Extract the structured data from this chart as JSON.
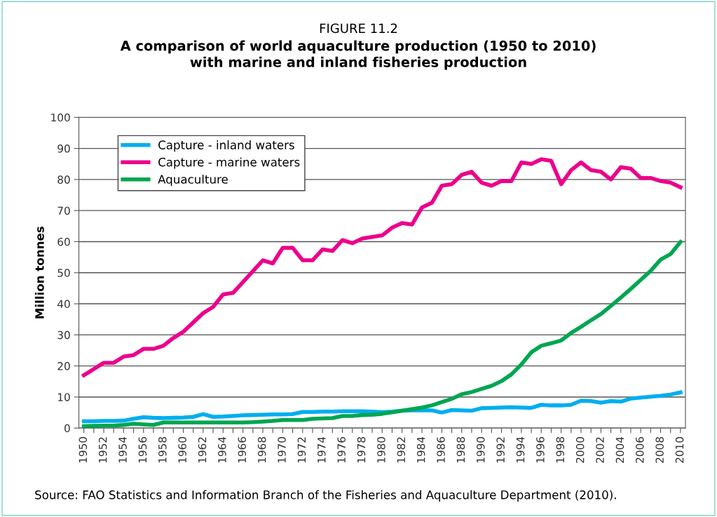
{
  "chart_data": {
    "type": "line",
    "title": "FIGURE 11.2",
    "subtitle": "A comparison of world aquaculture production (1950 to 2010)\nwith marine and inland fisheries production",
    "ylabel": "Million tonnes",
    "x": [
      1950,
      1951,
      1952,
      1953,
      1954,
      1955,
      1956,
      1957,
      1958,
      1959,
      1960,
      1961,
      1962,
      1963,
      1964,
      1965,
      1966,
      1967,
      1968,
      1969,
      1970,
      1971,
      1972,
      1973,
      1974,
      1975,
      1976,
      1977,
      1978,
      1979,
      1980,
      1981,
      1982,
      1983,
      1984,
      1985,
      1986,
      1987,
      1988,
      1989,
      1990,
      1991,
      1992,
      1993,
      1994,
      1995,
      1996,
      1997,
      1998,
      1999,
      2000,
      2001,
      2002,
      2003,
      2004,
      2005,
      2006,
      2007,
      2008,
      2009,
      2010
    ],
    "series": [
      {
        "name": "Capture - inland waters",
        "color": "#00aeef",
        "values": [
          2.2,
          2.2,
          2.3,
          2.3,
          2.4,
          3.0,
          3.5,
          3.3,
          3.2,
          3.3,
          3.4,
          3.6,
          4.5,
          3.6,
          3.7,
          3.9,
          4.1,
          4.2,
          4.3,
          4.4,
          4.4,
          4.5,
          5.2,
          5.2,
          5.3,
          5.3,
          5.4,
          5.4,
          5.4,
          5.3,
          5.1,
          5.3,
          5.6,
          5.7,
          5.7,
          5.7,
          5.0,
          5.8,
          5.7,
          5.6,
          6.4,
          6.5,
          6.6,
          6.7,
          6.6,
          6.5,
          7.5,
          7.3,
          7.3,
          7.5,
          8.8,
          8.7,
          8.2,
          8.7,
          8.5,
          9.5,
          9.8,
          10.1,
          10.4,
          10.8,
          11.5
        ]
      },
      {
        "name": "Capture - marine waters",
        "color": "#ec008c",
        "values": [
          17,
          19,
          21,
          21,
          23,
          23.5,
          25.5,
          25.5,
          26.5,
          29,
          31,
          34,
          37,
          39,
          43,
          43.5,
          47,
          50.5,
          54,
          53,
          58,
          58,
          54,
          54,
          57.5,
          57,
          60.5,
          59.5,
          61,
          61.5,
          62,
          64.5,
          66,
          65.5,
          71,
          72.5,
          78,
          78.5,
          81.5,
          82.5,
          79,
          78,
          79.5,
          79.5,
          85.5,
          85,
          86.5,
          86,
          78.5,
          83,
          85.5,
          83,
          82.5,
          80,
          84,
          83.5,
          80.5,
          80.5,
          79.5,
          79,
          77.5
        ]
      },
      {
        "name": "Aquaculture",
        "color": "#00a651",
        "values": [
          0.6,
          0.7,
          0.8,
          0.8,
          1.0,
          1.4,
          1.2,
          1.0,
          1.8,
          1.8,
          1.8,
          1.8,
          1.8,
          1.8,
          1.8,
          1.8,
          1.8,
          1.9,
          2.1,
          2.3,
          2.6,
          2.6,
          2.6,
          3.0,
          3.1,
          3.2,
          3.9,
          3.9,
          4.2,
          4.3,
          4.6,
          5.1,
          5.6,
          6.1,
          6.6,
          7.3,
          8.4,
          9.4,
          10.9,
          11.6,
          12.6,
          13.6,
          15.1,
          17.3,
          20.5,
          24.4,
          26.5,
          27.3,
          28.2,
          30.6,
          32.6,
          34.7,
          36.7,
          39.3,
          42.0,
          44.8,
          47.7,
          50.6,
          54.2,
          56.0,
          59.9
        ]
      }
    ],
    "xlim": [
      1949.5,
      2010.5
    ],
    "xticks": [
      1950,
      {
        "value": 1951,
        "label": null
      },
      1952,
      {
        "value": 1953,
        "label": null
      },
      1954,
      {
        "value": 1955,
        "label": null
      },
      1956,
      {
        "value": 1957,
        "label": null
      },
      1958,
      {
        "value": 1959,
        "label": null
      },
      1960,
      {
        "value": 1961,
        "label": null
      },
      1962,
      {
        "value": 1963,
        "label": null
      },
      1964,
      {
        "value": 1965,
        "label": null
      },
      1966,
      {
        "value": 1967,
        "label": null
      },
      1968,
      {
        "value": 1969,
        "label": null
      },
      1970,
      {
        "value": 1971,
        "label": null
      },
      1972,
      {
        "value": 1973,
        "label": null
      },
      1974,
      {
        "value": 1975,
        "label": null
      },
      1976,
      {
        "value": 1977,
        "label": null
      },
      1978,
      {
        "value": 1979,
        "label": null
      },
      1980,
      {
        "value": 1981,
        "label": null
      },
      1982,
      {
        "value": 1983,
        "label": null
      },
      1984,
      {
        "value": 1985,
        "label": null
      },
      1986,
      {
        "value": 1987,
        "label": null
      },
      1988,
      {
        "value": 1989,
        "label": null
      },
      1990,
      {
        "value": 1991,
        "label": null
      },
      1992,
      {
        "value": 1993,
        "label": null
      },
      1994,
      {
        "value": 1995,
        "label": null
      },
      1996,
      {
        "value": 1997,
        "label": null
      },
      1998,
      {
        "value": 1999,
        "label": null
      },
      2000,
      {
        "value": 2001,
        "label": null
      },
      2002,
      {
        "value": 2003,
        "label": null
      },
      2004,
      {
        "value": 2005,
        "label": null
      },
      2006,
      {
        "value": 2007,
        "label": null
      },
      2008,
      {
        "value": 2009,
        "label": null
      },
      2010
    ],
    "ylim": [
      0,
      100
    ],
    "yticks": [
      0,
      10,
      20,
      30,
      40,
      50,
      60,
      70,
      80,
      90,
      100
    ],
    "grid": "y",
    "legend": "top left",
    "marker": "none",
    "line_style": "solid",
    "annotations": [
      "Source: FAO Statistics and Information Branch of the Fisheries and Aquaculture Department (2010)."
    ]
  }
}
